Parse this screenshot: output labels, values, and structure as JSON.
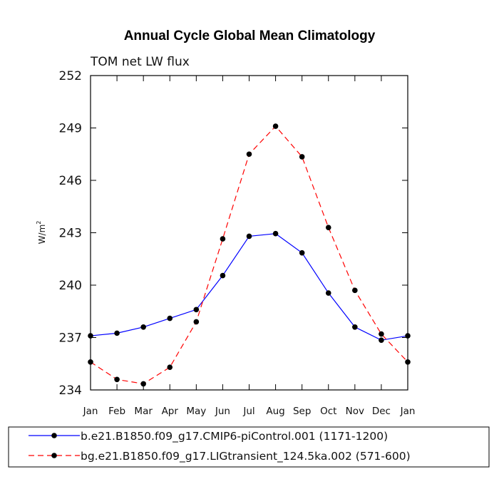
{
  "chart_data": {
    "type": "line",
    "title": "Annual Cycle Global Mean Climatology",
    "subtitle": "TOM net LW flux",
    "ylabel": "W/m",
    "ylabel_superscript": "2",
    "ylim": [
      234,
      252
    ],
    "yticks": [
      234,
      237,
      240,
      243,
      246,
      249,
      252
    ],
    "categories": [
      "Jan",
      "Feb",
      "Mar",
      "Apr",
      "May",
      "Jun",
      "Jul",
      "Aug",
      "Sep",
      "Oct",
      "Nov",
      "Dec",
      "Jan"
    ],
    "grid": false,
    "legend_position": "bottom",
    "series": [
      {
        "name": "b.e21.B1850.f09_g17.CMIP6-piControl.001 (1171-1200)",
        "color": "#0000ff",
        "dash": "solid",
        "values": [
          237.1,
          237.25,
          237.6,
          238.1,
          238.6,
          240.55,
          242.8,
          242.95,
          241.85,
          239.55,
          237.6,
          236.85,
          237.1
        ]
      },
      {
        "name": "bg.e21.B1850.f09_g17.LIGtransient_124.5ka.002 (571-600)",
        "color": "#ff0000",
        "dash": "dashed",
        "values": [
          235.6,
          234.6,
          234.35,
          235.3,
          237.9,
          242.65,
          247.5,
          249.1,
          247.35,
          243.3,
          239.7,
          237.2,
          235.6
        ]
      }
    ]
  }
}
